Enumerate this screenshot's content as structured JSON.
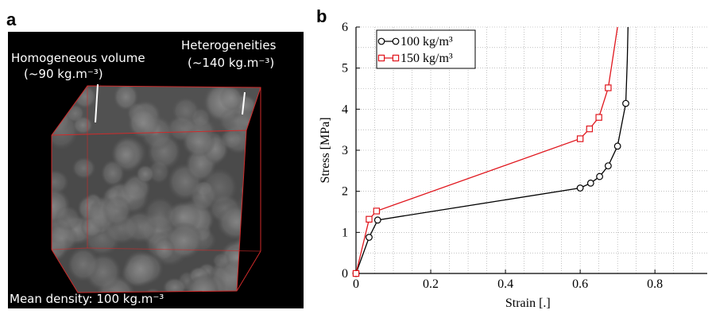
{
  "panel_a": {
    "letter": "a",
    "label_homogeneous_line1": "Homogeneous volume",
    "label_homogeneous_line2": "(~90 kg.m⁻³)",
    "label_heterogeneities_line1": "Heterogeneities",
    "label_heterogeneities_line2": "(~140 kg.m⁻³)",
    "mean_density": "Mean density: 100 kg.m⁻³",
    "box_edge_color": "#d02a2a",
    "background_color": "#000000"
  },
  "panel_b": {
    "letter": "b"
  },
  "chart_data": {
    "type": "line",
    "title": "",
    "xlabel": "Strain [.]",
    "ylabel": "Stress [MPa]",
    "xlim": [
      0,
      0.94
    ],
    "ylim": [
      0,
      6
    ],
    "x_ticks": [
      0,
      0.2,
      0.4,
      0.6,
      0.8
    ],
    "x_tick_labels": [
      "0",
      "0.2",
      "0.4",
      "0.6",
      "0.8"
    ],
    "y_ticks": [
      0,
      1,
      2,
      3,
      4,
      5,
      6
    ],
    "y_tick_labels": [
      "0",
      "1",
      "2",
      "3",
      "4",
      "5",
      "6"
    ],
    "grid": true,
    "legend_position": "top-left",
    "series": [
      {
        "name": "100 kg/m³",
        "color": "#000000",
        "marker": "circle",
        "points": [
          [
            0,
            0
          ],
          [
            0.035,
            0.88
          ],
          [
            0.058,
            1.3
          ],
          [
            0.6,
            2.08
          ],
          [
            0.628,
            2.2
          ],
          [
            0.652,
            2.36
          ],
          [
            0.675,
            2.62
          ],
          [
            0.7,
            3.1
          ],
          [
            0.722,
            4.14
          ]
        ],
        "curve": [
          [
            0,
            0
          ],
          [
            0.035,
            0.88
          ],
          [
            0.058,
            1.3
          ],
          [
            0.6,
            2.08
          ],
          [
            0.628,
            2.2
          ],
          [
            0.652,
            2.36
          ],
          [
            0.675,
            2.62
          ],
          [
            0.7,
            3.1
          ],
          [
            0.722,
            4.14
          ],
          [
            0.726,
            5.2
          ],
          [
            0.728,
            6.0
          ]
        ]
      },
      {
        "name": "150 kg/m³",
        "color": "#e0161d",
        "marker": "square",
        "points": [
          [
            0,
            0
          ],
          [
            0.035,
            1.32
          ],
          [
            0.055,
            1.52
          ],
          [
            0.6,
            3.28
          ],
          [
            0.625,
            3.52
          ],
          [
            0.65,
            3.8
          ],
          [
            0.675,
            4.52
          ]
        ],
        "curve": [
          [
            0,
            0
          ],
          [
            0.035,
            1.32
          ],
          [
            0.055,
            1.52
          ],
          [
            0.6,
            3.28
          ],
          [
            0.625,
            3.52
          ],
          [
            0.65,
            3.8
          ],
          [
            0.675,
            4.52
          ],
          [
            0.69,
            5.4
          ],
          [
            0.7,
            6.0
          ]
        ]
      }
    ]
  }
}
